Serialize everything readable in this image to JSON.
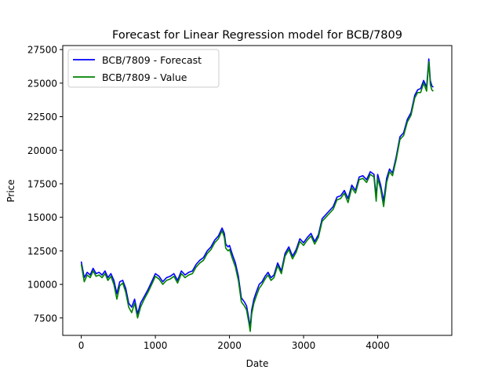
{
  "chart_data": {
    "type": "line",
    "title": "Forecast for Linear Regression model for BCB/7809",
    "xlabel": "Date",
    "ylabel": "Price",
    "xlim": [
      -250,
      5000
    ],
    "ylim": [
      6200,
      27800
    ],
    "xticks": [
      0,
      1000,
      2000,
      3000,
      4000
    ],
    "yticks": [
      7500,
      10000,
      12500,
      15000,
      17500,
      20000,
      22500,
      25000,
      27500
    ],
    "grid": false,
    "legend_position": "upper-left",
    "series": [
      {
        "name": "BCB/7809 - Forecast",
        "color": "#0000ff",
        "x": [
          0,
          40,
          80,
          120,
          160,
          200,
          240,
          280,
          320,
          360,
          400,
          440,
          480,
          520,
          560,
          600,
          640,
          680,
          720,
          760,
          800,
          850,
          900,
          950,
          1000,
          1050,
          1100,
          1150,
          1200,
          1250,
          1300,
          1350,
          1400,
          1450,
          1500,
          1550,
          1600,
          1650,
          1700,
          1750,
          1800,
          1850,
          1900,
          1930,
          1950,
          1980,
          2000,
          2040,
          2080,
          2120,
          2160,
          2200,
          2230,
          2260,
          2280,
          2300,
          2330,
          2360,
          2400,
          2440,
          2480,
          2520,
          2560,
          2600,
          2650,
          2700,
          2750,
          2800,
          2850,
          2900,
          2950,
          3000,
          3050,
          3100,
          3150,
          3200,
          3250,
          3300,
          3350,
          3400,
          3450,
          3500,
          3550,
          3600,
          3650,
          3700,
          3750,
          3800,
          3850,
          3900,
          3950,
          3980,
          4000,
          4040,
          4080,
          4120,
          4160,
          4200,
          4250,
          4300,
          4350,
          4400,
          4450,
          4500,
          4540,
          4580,
          4620,
          4660,
          4690,
          4710,
          4730,
          4750
        ],
        "values": [
          11700,
          10500,
          10900,
          10700,
          11200,
          10800,
          10900,
          10700,
          11000,
          10500,
          10800,
          10300,
          9300,
          10200,
          10300,
          9700,
          8600,
          8300,
          8900,
          7800,
          8600,
          9100,
          9600,
          10200,
          10800,
          10600,
          10200,
          10500,
          10600,
          10800,
          10300,
          11000,
          10700,
          10900,
          11000,
          11500,
          11800,
          12000,
          12500,
          12800,
          13300,
          13600,
          14200,
          13800,
          13000,
          12800,
          12900,
          12200,
          11600,
          10600,
          9000,
          8700,
          8400,
          7500,
          6800,
          8100,
          8900,
          9400,
          10000,
          10200,
          10600,
          10900,
          10500,
          10700,
          11600,
          11000,
          12300,
          12800,
          12100,
          12600,
          13400,
          13100,
          13500,
          13800,
          13200,
          13700,
          14900,
          15200,
          15500,
          15800,
          16500,
          16600,
          17000,
          16400,
          17400,
          17000,
          18000,
          18100,
          17800,
          18400,
          18200,
          16500,
          18200,
          17400,
          16200,
          17900,
          18600,
          18300,
          19500,
          21000,
          21300,
          22300,
          22800,
          24100,
          24500,
          24600,
          25200,
          24700,
          26800,
          25200,
          24800,
          24700
        ]
      },
      {
        "name": "BCB/7809 - Value",
        "color": "#008000",
        "x": [
          0,
          40,
          80,
          120,
          160,
          200,
          240,
          280,
          320,
          360,
          400,
          440,
          480,
          520,
          560,
          600,
          640,
          680,
          720,
          760,
          800,
          850,
          900,
          950,
          1000,
          1050,
          1100,
          1150,
          1200,
          1250,
          1300,
          1350,
          1400,
          1450,
          1500,
          1550,
          1600,
          1650,
          1700,
          1750,
          1800,
          1850,
          1900,
          1930,
          1950,
          1980,
          2000,
          2040,
          2080,
          2120,
          2160,
          2200,
          2230,
          2260,
          2280,
          2300,
          2330,
          2360,
          2400,
          2440,
          2480,
          2520,
          2560,
          2600,
          2650,
          2700,
          2750,
          2800,
          2850,
          2900,
          2950,
          3000,
          3050,
          3100,
          3150,
          3200,
          3250,
          3300,
          3350,
          3400,
          3450,
          3500,
          3550,
          3600,
          3650,
          3700,
          3750,
          3800,
          3850,
          3900,
          3950,
          3980,
          4000,
          4040,
          4080,
          4120,
          4160,
          4200,
          4250,
          4300,
          4350,
          4400,
          4450,
          4500,
          4540,
          4580,
          4620,
          4660,
          4690,
          4710,
          4730,
          4750
        ],
        "values": [
          11500,
          10200,
          10700,
          10500,
          11000,
          10600,
          10700,
          10500,
          10800,
          10300,
          10600,
          10000,
          8900,
          9900,
          10100,
          9400,
          8300,
          7900,
          8600,
          7500,
          8300,
          8900,
          9400,
          10000,
          10600,
          10400,
          10000,
          10300,
          10400,
          10600,
          10100,
          10800,
          10500,
          10700,
          10800,
          11300,
          11600,
          11800,
          12300,
          12600,
          13100,
          13400,
          14000,
          13500,
          12700,
          12500,
          12600,
          11900,
          11300,
          10300,
          8700,
          8400,
          8100,
          7200,
          6500,
          7800,
          8600,
          9100,
          9700,
          10000,
          10400,
          10700,
          10300,
          10500,
          11400,
          10800,
          12100,
          12600,
          11900,
          12400,
          13200,
          12900,
          13300,
          13600,
          13000,
          13500,
          14700,
          15000,
          15300,
          15600,
          16300,
          16400,
          16800,
          16100,
          17200,
          16800,
          17800,
          17900,
          17600,
          18200,
          18000,
          16200,
          17900,
          17100,
          15800,
          17600,
          18400,
          18100,
          19300,
          20800,
          21100,
          22100,
          22600,
          23900,
          24300,
          24300,
          25000,
          24400,
          26600,
          24900,
          24500,
          24400
        ]
      }
    ]
  }
}
